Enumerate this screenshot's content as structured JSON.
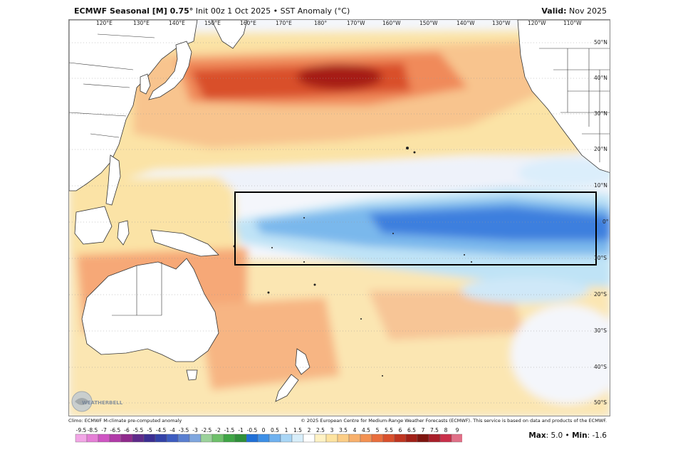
{
  "header": {
    "title_bold": "ECMWF Seasonal [M] 0.75°",
    "title_rest": " Init 00z 1 Oct 2025 • SST Anomaly (°C)",
    "valid_label": "Valid:",
    "valid_value": " Nov 2025"
  },
  "map": {
    "lon_labels": [
      "120°E",
      "130°E",
      "140°E",
      "150°E",
      "160°E",
      "170°E",
      "180°",
      "170°W",
      "160°W",
      "150°W",
      "140°W",
      "130°W",
      "120°W",
      "110°W"
    ],
    "lat_labels": [
      "50°N",
      "40°N",
      "30°N",
      "20°N",
      "10°N",
      "0°",
      "10°S",
      "20°S",
      "30°S",
      "40°S",
      "50°S"
    ],
    "region_box": {
      "lon_from": "170°E",
      "lon_to": "90°W",
      "lat_from": "5°N",
      "lat_to": "5°S"
    },
    "watermark": "WEATHERBELL",
    "colors": {
      "ocean_neutral": "#f4f6fb",
      "warm_light": "#fbe3a6",
      "warm_mid": "#f8b47a",
      "warm_strong": "#e9663f",
      "warm_max": "#a61f12",
      "cool_light": "#bfe3f6",
      "cool_mid": "#7ab8ec",
      "cool_strong": "#3d7fde",
      "land": "#ffffff",
      "coast": "#333333"
    }
  },
  "footer": {
    "climo": "Climo: ECMWF M-climate pre-computed anomaly",
    "copyright": "© 2025 European Centre for Medium-Range Weather Forecasts (ECMWF). This service is based on data and products of the ECMWF."
  },
  "colorbar": {
    "labels": [
      "-9.5",
      "-8.5",
      "-7",
      "-6.5",
      "-6",
      "-5.5",
      "-5",
      "-4.5",
      "-4",
      "-3.5",
      "-3",
      "-2.5",
      "-2",
      "-1.5",
      "-1",
      "-0.5",
      "0",
      "0.5",
      "1",
      "1.5",
      "2",
      "2.5",
      "3",
      "3.5",
      "4",
      "4.5",
      "5",
      "5.5",
      "6",
      "6.5",
      "7",
      "7.5",
      "8",
      "9"
    ],
    "colors": [
      "#f2a6e6",
      "#e57fd6",
      "#cf55c3",
      "#b13aa8",
      "#8f2a8c",
      "#5e2a8a",
      "#3b2e92",
      "#3342a8",
      "#3d5cc0",
      "#5a7fd0",
      "#7fa6de",
      "#9bd29b",
      "#6ec06a",
      "#3fa545",
      "#2f8f3a",
      "#1f6fd6",
      "#3d8fe6",
      "#6fb1ef",
      "#a9d6f6",
      "#d8eefa",
      "#ffffff",
      "#fff2c4",
      "#fde3a0",
      "#fbcd86",
      "#f8b06c",
      "#f39152",
      "#e96e3d",
      "#d9502c",
      "#bf3520",
      "#a12017",
      "#7e150f",
      "#a81f2a",
      "#c9304a",
      "#e07088"
    ]
  },
  "stats": {
    "max_label": "Max",
    "max_value": ": 5.0",
    "sep": " • ",
    "min_label": "Min",
    "min_value": ": -1.6"
  }
}
